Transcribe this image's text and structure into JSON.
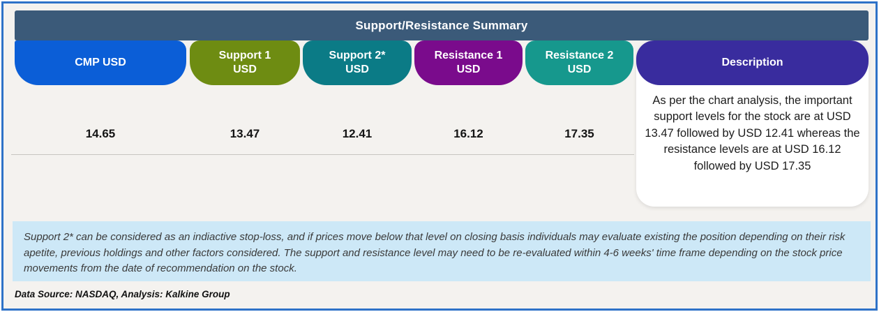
{
  "header": {
    "title": "Support/Resistance Summary"
  },
  "columns": [
    {
      "label_line1": "CMP USD",
      "label_line2": "",
      "value": "14.65",
      "color": "#0b5ed7"
    },
    {
      "label_line1": "Support 1",
      "label_line2": "USD",
      "value": "13.47",
      "color": "#6e8c12"
    },
    {
      "label_line1": "Support 2*",
      "label_line2": "USD",
      "value": "12.41",
      "color": "#0b7b86"
    },
    {
      "label_line1": "Resistance 1",
      "label_line2": "USD",
      "value": "16.12",
      "color": "#7a0b8c"
    },
    {
      "label_line1": "Resistance 2",
      "label_line2": "USD",
      "value": "17.35",
      "color": "#16988d"
    }
  ],
  "description": {
    "label": "Description",
    "color": "#392c9e",
    "text": "As per the chart analysis, the important support levels for the stock are at USD 13.47 followed by USD 12.41 whereas the resistance levels are at USD 16.12 followed by USD 17.35"
  },
  "note": {
    "text": "Support 2* can be considered as an indiactive stop-loss, and if prices move below that level on closing basis individuals may evaluate existing the position depending on their risk apetite, previous holdings and other factors considered. The support and resistance level may need to be re-evaluated within 4-6 weeks' time frame depending on the stock price movements from  the date of recommendation on the stock."
  },
  "footer": {
    "source": "Data Source: NASDAQ, Analysis: Kalkine Group"
  },
  "colors": {
    "frame_border": "#2e72c8",
    "title_bar_bg": "#3b5a79",
    "page_bg": "#f4f2ef",
    "note_bg": "#cde8f7",
    "divider": "#c6c4c0"
  }
}
